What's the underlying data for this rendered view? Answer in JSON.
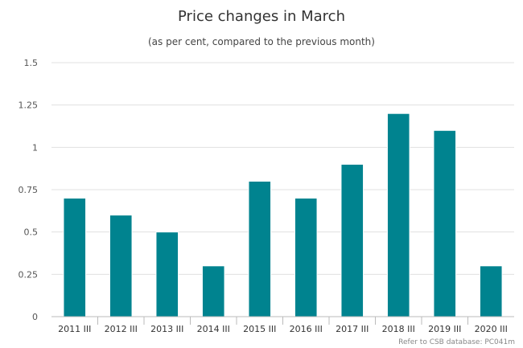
{
  "chart_data": {
    "type": "bar",
    "title": "Price changes in March",
    "subtitle": "(as per cent, compared to the previous month)",
    "categories": [
      "2011 III",
      "2012 III",
      "2013 III",
      "2014 III",
      "2015 III",
      "2016 III",
      "2017 III",
      "2018 III",
      "2019 III",
      "2020 III"
    ],
    "values": [
      0.7,
      0.6,
      0.5,
      0.3,
      0.8,
      0.7,
      0.9,
      1.2,
      1.1,
      0.3
    ],
    "ylim": [
      0,
      1.5
    ],
    "yticks": [
      "0",
      "0.25",
      "0.5",
      "0.75",
      "1",
      "1.25",
      "1.5"
    ],
    "grid": true,
    "bar_color": "#00838f",
    "credit": "Refer to CSB database: PC041m"
  }
}
